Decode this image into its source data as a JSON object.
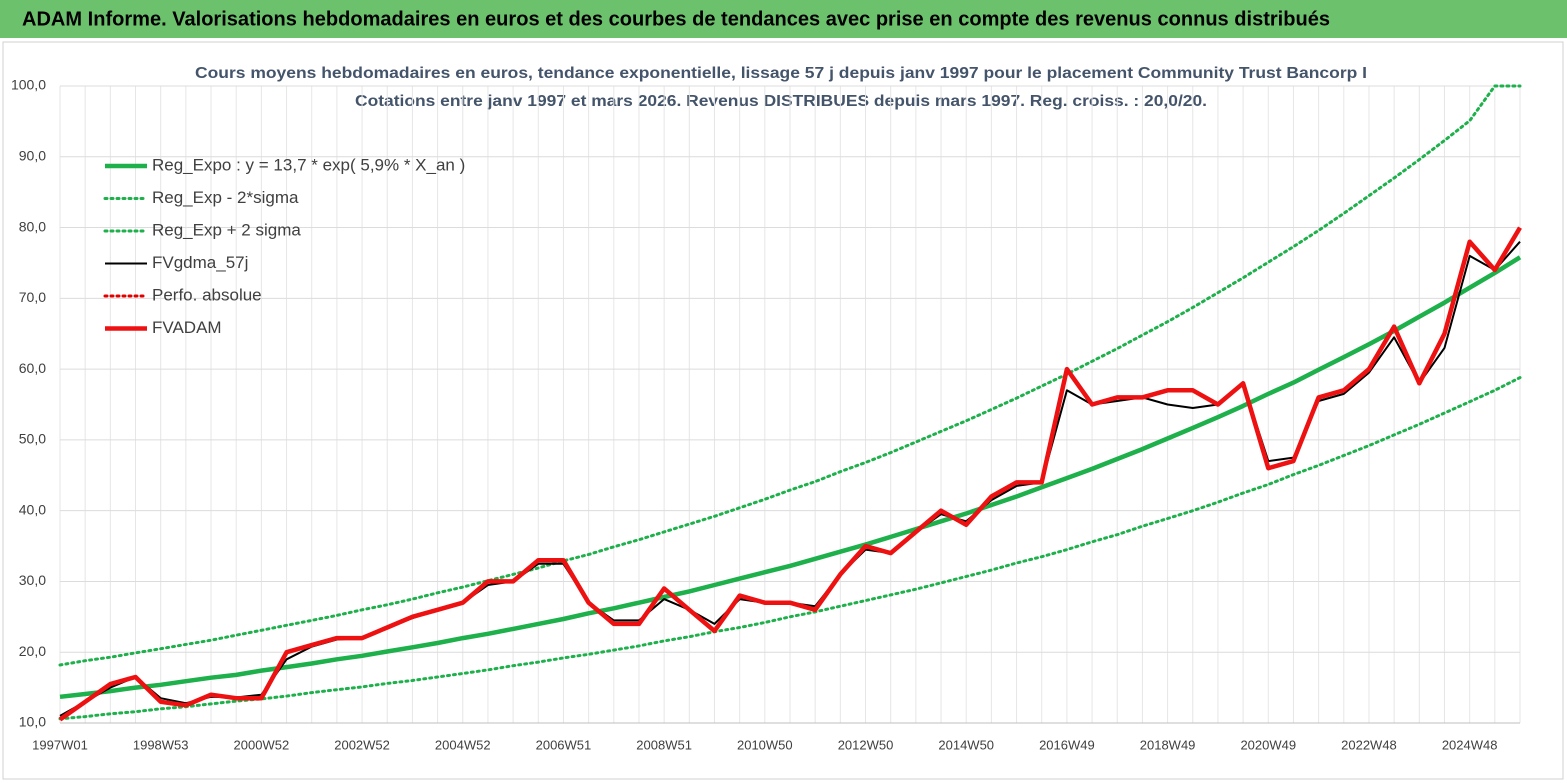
{
  "header": {
    "title": "ADAM Informe. Valorisations hebdomadaires en euros et des courbes de tendances avec prise en compte des revenus connus distribués"
  },
  "chart_data": {
    "type": "line",
    "title": "Cours moyens hebdomadaires en euros, tendance exponentielle, lissage 57 j depuis janv 1997  pour le placement Community Trust Bancorp I",
    "subtitle": "Cotations entre janv 1997 et mars 2026. Revenus DISTRIBUES depuis mars 1997. Reg. croiss. : 20,0/20.",
    "categories": [
      "1997W01",
      null,
      null,
      null,
      "1998W53",
      null,
      null,
      null,
      "2000W52",
      null,
      null,
      null,
      "2002W52",
      null,
      null,
      null,
      "2004W52",
      null,
      null,
      null,
      "2006W51",
      null,
      null,
      null,
      "2008W51",
      null,
      null,
      null,
      "2010W50",
      null,
      null,
      null,
      "2012W50",
      null,
      null,
      null,
      "2014W50",
      null,
      null,
      null,
      "2016W49",
      null,
      null,
      null,
      "2018W49",
      null,
      null,
      null,
      "2020W49",
      null,
      null,
      null,
      "2022W48",
      null,
      null,
      null,
      "2024W48",
      null,
      null
    ],
    "ylim": [
      10,
      100
    ],
    "yticks": [
      {
        "value": 10,
        "label": "10,0"
      },
      {
        "value": 20,
        "label": "20,0"
      },
      {
        "value": 30,
        "label": "30,0"
      },
      {
        "value": 40,
        "label": "40,0"
      },
      {
        "value": 50,
        "label": "50,0"
      },
      {
        "value": 60,
        "label": "60,0"
      },
      {
        "value": 70,
        "label": "70,0"
      },
      {
        "value": 80,
        "label": "80,0"
      },
      {
        "value": 90,
        "label": "90,0"
      },
      {
        "value": 100,
        "label": "100,0"
      }
    ],
    "grid": true,
    "legend": "upper-left",
    "series": [
      {
        "name": "Reg_Expo : y = 13,7 * exp( 5,9% *  X_an )",
        "color": "#1db04b",
        "style": "thick",
        "values": [
          13.7,
          14.1,
          14.5,
          15.0,
          15.4,
          15.9,
          16.4,
          16.8,
          17.4,
          17.9,
          18.4,
          19.0,
          19.5,
          20.1,
          20.7,
          21.3,
          22.0,
          22.6,
          23.3,
          24.0,
          24.7,
          25.5,
          26.2,
          27.0,
          27.8,
          28.6,
          29.5,
          30.4,
          31.3,
          32.2,
          33.2,
          34.2,
          35.2,
          36.3,
          37.4,
          38.5,
          39.6,
          40.8,
          42.0,
          43.3,
          44.6,
          45.9,
          47.3,
          48.7,
          50.2,
          51.7,
          53.2,
          54.8,
          56.5,
          58.1,
          59.9,
          61.7,
          63.5,
          65.4,
          67.4,
          69.4,
          71.5,
          73.6,
          75.8
        ]
      },
      {
        "name": "Reg_Exp - 2*sigma",
        "color": "#1db04b",
        "style": "dotted",
        "values": [
          10.6,
          10.9,
          11.3,
          11.6,
          12.0,
          12.3,
          12.7,
          13.1,
          13.4,
          13.8,
          14.3,
          14.7,
          15.1,
          15.6,
          16.0,
          16.5,
          17.0,
          17.5,
          18.1,
          18.6,
          19.2,
          19.7,
          20.3,
          20.9,
          21.6,
          22.2,
          22.9,
          23.5,
          24.2,
          25.0,
          25.7,
          26.5,
          27.3,
          28.1,
          28.9,
          29.8,
          30.7,
          31.6,
          32.6,
          33.5,
          34.5,
          35.6,
          36.6,
          37.8,
          38.9,
          40.0,
          41.2,
          42.5,
          43.7,
          45.1,
          46.4,
          47.8,
          49.2,
          50.7,
          52.2,
          53.8,
          55.4,
          57.0,
          58.8
        ]
      },
      {
        "name": "Reg_Exp + 2 sigma",
        "color": "#1db04b",
        "style": "dotted",
        "values": [
          18.2,
          18.8,
          19.3,
          19.9,
          20.5,
          21.1,
          21.7,
          22.4,
          23.1,
          23.8,
          24.5,
          25.2,
          26.0,
          26.7,
          27.5,
          28.4,
          29.2,
          30.1,
          31.0,
          31.9,
          32.9,
          33.8,
          34.9,
          35.9,
          37.0,
          38.1,
          39.2,
          40.4,
          41.6,
          42.9,
          44.1,
          45.5,
          46.8,
          48.2,
          49.7,
          51.2,
          52.7,
          54.3,
          55.9,
          57.6,
          59.3,
          61.1,
          62.9,
          64.8,
          66.7,
          68.7,
          70.8,
          72.9,
          75.1,
          77.3,
          79.6,
          82.0,
          84.5,
          87.0,
          89.6,
          92.3,
          95.1,
          100,
          100
        ]
      },
      {
        "name": "FVgdma_57j",
        "color": "#000000",
        "style": "thin",
        "values": [
          11,
          13,
          15,
          16.5,
          13.5,
          12.8,
          13.7,
          13.6,
          14,
          19,
          20.8,
          21.8,
          22,
          23.5,
          24.8,
          26,
          27,
          29.5,
          30,
          32.5,
          32.5,
          27,
          24.5,
          24.5,
          27.5,
          26,
          24,
          27.5,
          27,
          27,
          26.5,
          31,
          34.5,
          34,
          37,
          39.5,
          38.5,
          41.5,
          43.5,
          44,
          57,
          55,
          55.5,
          56,
          55,
          54.5,
          55,
          58,
          47,
          47.5,
          55.5,
          56.5,
          59.5,
          64.5,
          58,
          63,
          76,
          74,
          78
        ]
      },
      {
        "name": "Perfo. absolue",
        "color": "#e00000",
        "style": "dotted",
        "values": [
          null,
          null,
          null,
          null,
          null,
          null,
          null,
          null,
          null,
          null,
          null,
          null,
          null,
          null,
          null,
          null,
          null,
          null,
          null,
          null,
          null,
          null,
          null,
          null,
          null,
          null,
          null,
          null,
          null,
          null,
          null,
          null,
          null,
          null,
          null,
          null,
          null,
          null,
          null,
          null,
          null,
          null,
          null,
          null,
          null,
          null,
          null,
          null,
          null,
          null,
          null,
          null,
          null,
          null,
          null,
          null,
          null,
          null,
          null
        ]
      },
      {
        "name": "FVADAM",
        "color": "#ee1111",
        "style": "thick",
        "values": [
          10.5,
          13,
          15.5,
          16.5,
          13,
          12.5,
          14,
          13.5,
          13.5,
          20,
          21,
          22,
          22,
          23.5,
          25,
          26,
          27,
          30,
          30,
          33,
          33,
          27,
          24,
          24,
          29,
          26,
          23,
          28,
          27,
          27,
          26,
          31,
          35,
          34,
          37,
          40,
          38,
          42,
          44,
          44,
          60,
          55,
          56,
          56,
          57,
          57,
          55,
          58,
          46,
          47,
          56,
          57,
          60,
          66,
          58,
          65,
          78,
          74,
          80
        ]
      }
    ]
  }
}
